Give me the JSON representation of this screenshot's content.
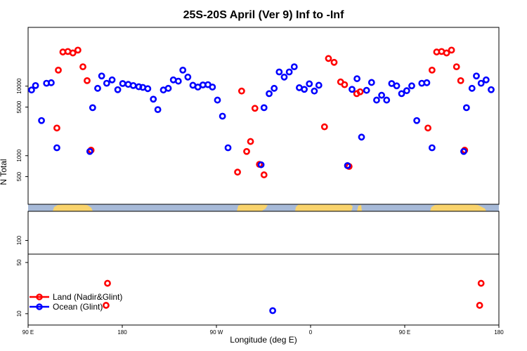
{
  "chart_data": {
    "type": "scatter",
    "title": "25S-20S April (Ver 9)   Inf to -Inf",
    "xlabel": "Longitude (deg E)",
    "ylabel": "N Total",
    "x_tick_values": [
      90,
      180,
      270,
      360,
      450,
      540
    ],
    "x_tick_labels": [
      "90 E",
      "180",
      "90 W",
      "0",
      "90 E",
      "180"
    ],
    "xlim": [
      90,
      540
    ],
    "y_scale": "log",
    "upper_panel": {
      "ylim": [
        200,
        70000
      ],
      "y_tick_values": [
        500,
        1000,
        5000,
        10000
      ],
      "y_tick_labels": [
        "500",
        "1000",
        "5000",
        "10000"
      ]
    },
    "lower_panel": {
      "ylim": [
        7,
        250
      ],
      "y_tick_values": [
        10,
        50,
        100
      ],
      "y_tick_labels": [
        "10",
        "50",
        "100"
      ]
    },
    "legend_position": "bottom-left",
    "series": [
      {
        "name": "Land (Nadir&Glint)",
        "color": "#ff0000",
        "points": [
          [
            117.5,
            2500
          ],
          [
            118.9,
            17000
          ],
          [
            123.2,
            31000
          ],
          [
            128.0,
            31500
          ],
          [
            132.8,
            30000
          ],
          [
            137.6,
            33000
          ],
          [
            142.4,
            19000
          ],
          [
            146.4,
            12000
          ],
          [
            150.2,
            1200
          ],
          [
            164.5,
            13
          ],
          [
            165.9,
            26
          ],
          [
            290.2,
            580
          ],
          [
            294.1,
            8500
          ],
          [
            298.9,
            1150
          ],
          [
            302.6,
            1600
          ],
          [
            306.8,
            4800
          ],
          [
            311.1,
            750
          ],
          [
            315.5,
            530
          ],
          [
            373.3,
            2600
          ],
          [
            377.1,
            25000
          ],
          [
            382.5,
            22000
          ],
          [
            388.7,
            11500
          ],
          [
            392.5,
            10500
          ],
          [
            396.8,
            700
          ],
          [
            404.1,
            7800
          ],
          [
            407.4,
            8300
          ],
          [
            472.2,
            2500
          ],
          [
            476.1,
            17000
          ],
          [
            480.5,
            31000
          ],
          [
            485.2,
            31500
          ],
          [
            490.0,
            30000
          ],
          [
            494.7,
            33000
          ],
          [
            499.5,
            19000
          ],
          [
            503.5,
            12000
          ],
          [
            507.3,
            1200
          ],
          [
            521.6,
            13
          ],
          [
            523.0,
            26
          ]
        ]
      },
      {
        "name": "Ocean (Glint)",
        "color": "#0000ff",
        "points": [
          [
            93.3,
            8800
          ],
          [
            97.1,
            10200
          ],
          [
            102.8,
            3200
          ],
          [
            107.6,
            11000
          ],
          [
            112.1,
            11200
          ],
          [
            117.5,
            1300
          ],
          [
            149.0,
            1150
          ],
          [
            151.7,
            4900
          ],
          [
            156.5,
            9300
          ],
          [
            160.3,
            14000
          ],
          [
            165.1,
            11000
          ],
          [
            170.3,
            12300
          ],
          [
            175.7,
            8900
          ],
          [
            180.4,
            10900
          ],
          [
            185.7,
            10600
          ],
          [
            190.5,
            10200
          ],
          [
            195.8,
            9800
          ],
          [
            199.6,
            9600
          ],
          [
            204.4,
            9200
          ],
          [
            209.7,
            6500
          ],
          [
            214.0,
            4600
          ],
          [
            219.3,
            8800
          ],
          [
            224.0,
            9300
          ],
          [
            228.8,
            12300
          ],
          [
            233.6,
            11800
          ],
          [
            237.9,
            17000
          ],
          [
            242.7,
            13500
          ],
          [
            247.5,
            10300
          ],
          [
            252.3,
            9700
          ],
          [
            257.1,
            10400
          ],
          [
            261.9,
            10500
          ],
          [
            266.2,
            9700
          ],
          [
            271.0,
            6300
          ],
          [
            275.8,
            3700
          ],
          [
            281.1,
            1300
          ],
          [
            312.7,
            740
          ],
          [
            315.5,
            4900
          ],
          [
            320.4,
            7800
          ],
          [
            325.2,
            9300
          ],
          [
            330.0,
            16000
          ],
          [
            334.8,
            13500
          ],
          [
            339.6,
            16000
          ],
          [
            344.4,
            19000
          ],
          [
            349.2,
            9500
          ],
          [
            354.0,
            9000
          ],
          [
            358.8,
            10800
          ],
          [
            363.6,
            8500
          ],
          [
            367.9,
            10300
          ],
          [
            395.3,
            720
          ],
          [
            399.6,
            9000
          ],
          [
            404.4,
            12800
          ],
          [
            408.7,
            1850
          ],
          [
            413.5,
            8700
          ],
          [
            418.3,
            11300
          ],
          [
            423.1,
            6300
          ],
          [
            427.9,
            7400
          ],
          [
            432.7,
            6300
          ],
          [
            437.5,
            10900
          ],
          [
            442.3,
            10100
          ],
          [
            447.0,
            7800
          ],
          [
            451.9,
            8600
          ],
          [
            456.7,
            10100
          ],
          [
            461.5,
            3200
          ],
          [
            466.3,
            11000
          ],
          [
            471.1,
            11200
          ],
          [
            476.1,
            1300
          ],
          [
            506.4,
            1150
          ],
          [
            509.0,
            4900
          ],
          [
            514.3,
            9300
          ],
          [
            518.5,
            14000
          ],
          [
            323.8,
            11
          ],
          [
            523.0,
            11000
          ],
          [
            527.8,
            12300
          ],
          [
            532.6,
            8900
          ]
        ]
      }
    ]
  }
}
